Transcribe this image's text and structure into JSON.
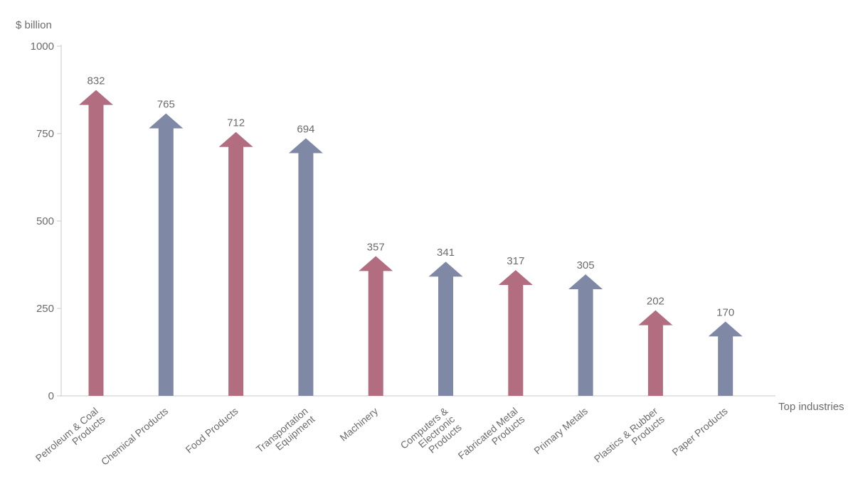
{
  "chart_data": {
    "type": "bar",
    "bar_shape": "arrow",
    "ylabel": "$ billion",
    "xlabel": "Top industries",
    "ylim": [
      0,
      1000
    ],
    "yticks": [
      0,
      250,
      500,
      750,
      1000
    ],
    "grid": false,
    "categories": [
      "Petroleum & Coal\nProducts",
      "Chemical Products",
      "Food Products",
      "Transportation\nEquipment",
      "Machinery",
      "Computers &\nElectronic\nProducts",
      "Fabricated Metal\nProducts",
      "Primary Metals",
      "Plastics & Rubber\nProducts",
      "Paper Products"
    ],
    "values": [
      832,
      765,
      712,
      694,
      357,
      341,
      317,
      305,
      202,
      170
    ],
    "colors": [
      "#b26d80",
      "#7f89a6"
    ]
  }
}
